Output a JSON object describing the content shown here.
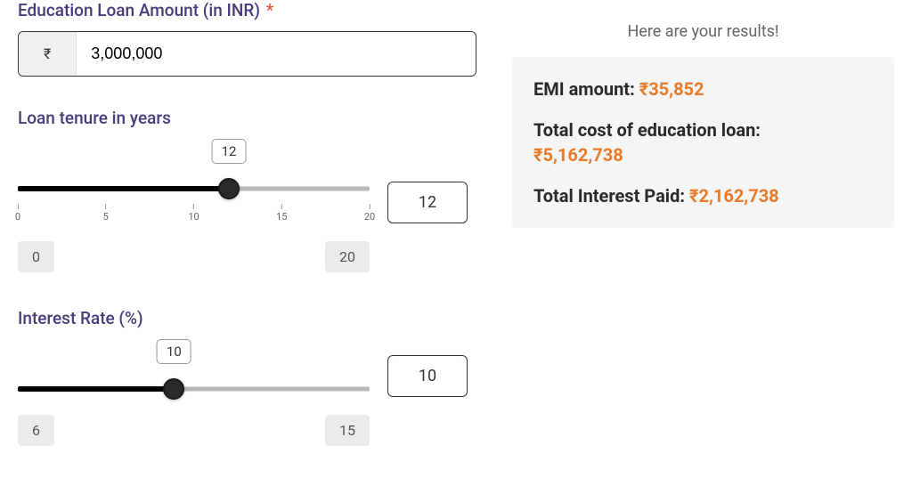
{
  "loan_amount": {
    "label": "Education Loan Amount (in INR)",
    "required_mark": "*",
    "currency_symbol": "₹",
    "value": "3,000,000"
  },
  "tenure": {
    "label": "Loan tenure in years",
    "value": 12,
    "value_display": "12",
    "tooltip": "12",
    "min": 0,
    "max": 20,
    "min_display": "0",
    "max_display": "20",
    "ticks": [
      {
        "label": "0",
        "pos_pct": 0
      },
      {
        "label": "5",
        "pos_pct": 25
      },
      {
        "label": "10",
        "pos_pct": 50
      },
      {
        "label": "15",
        "pos_pct": 75
      },
      {
        "label": "20",
        "pos_pct": 100
      }
    ],
    "fill_pct": 60,
    "thumb_pct": 60,
    "tooltip_pct": 60
  },
  "interest": {
    "label": "Interest Rate (%)",
    "value": 10,
    "value_display": "10",
    "tooltip": "10",
    "min": 6,
    "max": 15,
    "min_display": "6",
    "max_display": "15",
    "fill_pct": 44.4,
    "thumb_pct": 44.4,
    "tooltip_pct": 44.4
  },
  "results": {
    "heading": "Here are your results!",
    "emi_label": "EMI amount: ",
    "emi_value": "₹35,852",
    "total_cost_label": "Total cost of education loan: ",
    "total_cost_value": "₹5,162,738",
    "interest_paid_label": "Total Interest Paid: ",
    "interest_paid_value": "₹2,162,738"
  },
  "colors": {
    "label": "#4a3b7a",
    "accent": "#e67b2a",
    "required": "#e74c3c",
    "text_dark": "#2a2a2a",
    "card_bg": "#f5f5f5",
    "badge_bg": "#ebebeb",
    "prefix_bg": "#f0f0f0",
    "track_bg": "#b8b8b8",
    "track_fill": "#000000",
    "thumb": "#2a2a2a"
  }
}
